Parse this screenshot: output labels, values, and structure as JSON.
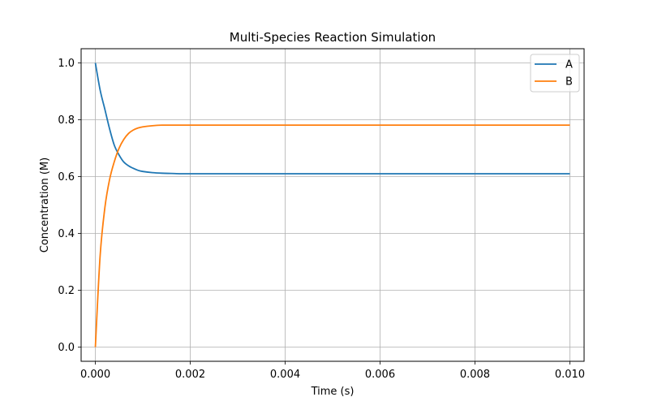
{
  "chart_data": {
    "type": "line",
    "title": "Multi-Species Reaction Simulation",
    "xlabel": "Time (s)",
    "ylabel": "Concentration (M)",
    "xlim": [
      -0.0003,
      0.0103
    ],
    "ylim": [
      -0.05,
      1.05
    ],
    "xticks": [
      0.0,
      0.002,
      0.004,
      0.006,
      0.008,
      0.01
    ],
    "xtick_labels": [
      "0.000",
      "0.002",
      "0.004",
      "0.006",
      "0.008",
      "0.010"
    ],
    "yticks": [
      0.0,
      0.2,
      0.4,
      0.6,
      0.8,
      1.0
    ],
    "ytick_labels": [
      "0.0",
      "0.2",
      "0.4",
      "0.6",
      "0.8",
      "1.0"
    ],
    "grid": true,
    "legend_position": "top-right",
    "x": [
      0.0,
      0.0001,
      0.0002,
      0.0003,
      0.0004,
      0.0005,
      0.0006,
      0.0007,
      0.0008,
      0.0009,
      0.001,
      0.0012,
      0.0014,
      0.0016,
      0.0018,
      0.002,
      0.0025,
      0.003,
      0.004,
      0.005,
      0.006,
      0.007,
      0.008,
      0.009,
      0.01
    ],
    "series": [
      {
        "name": "A",
        "color": "#1f77b4",
        "values": [
          1.0,
          0.905,
          0.837,
          0.768,
          0.71,
          0.676,
          0.651,
          0.638,
          0.629,
          0.622,
          0.618,
          0.614,
          0.612,
          0.611,
          0.61,
          0.61,
          0.61,
          0.61,
          0.61,
          0.61,
          0.61,
          0.61,
          0.61,
          0.61,
          0.61
        ]
      },
      {
        "name": "B",
        "color": "#ff7f0e",
        "values": [
          0.0,
          0.32,
          0.49,
          0.59,
          0.653,
          0.7,
          0.731,
          0.752,
          0.764,
          0.771,
          0.775,
          0.779,
          0.781,
          0.781,
          0.781,
          0.781,
          0.781,
          0.781,
          0.781,
          0.781,
          0.781,
          0.781,
          0.781,
          0.781,
          0.781
        ]
      }
    ]
  }
}
